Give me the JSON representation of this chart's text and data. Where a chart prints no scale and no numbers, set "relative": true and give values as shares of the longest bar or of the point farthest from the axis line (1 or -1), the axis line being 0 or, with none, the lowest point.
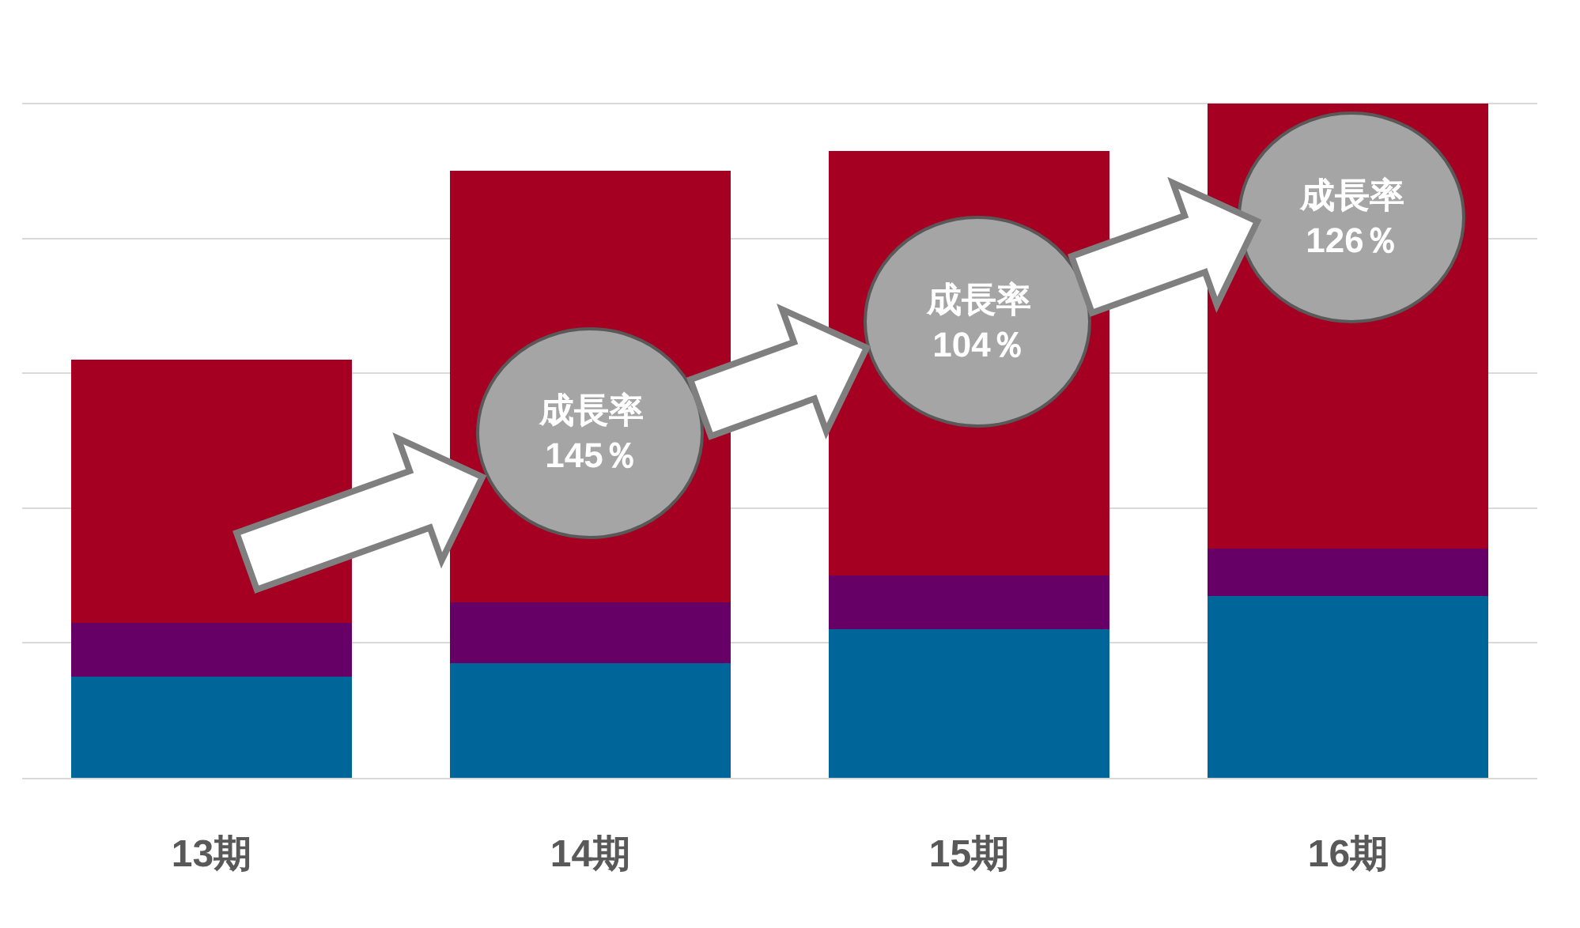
{
  "chart_data": {
    "type": "bar",
    "categories": [
      "13期",
      "14期",
      "15期",
      "16期"
    ],
    "stacked": true,
    "relative": true,
    "grid": "y",
    "series": [
      {
        "color": "#006699",
        "values": [
          0.15,
          0.17,
          0.22,
          0.27
        ]
      },
      {
        "color": "#660066",
        "values": [
          0.08,
          0.09,
          0.08,
          0.07
        ]
      },
      {
        "color": "#a50021",
        "values": [
          0.39,
          0.64,
          0.63,
          0.66
        ]
      }
    ],
    "annotations": [
      "成長率\n145％",
      "成長率\n104％",
      "成長率\n126％"
    ]
  }
}
